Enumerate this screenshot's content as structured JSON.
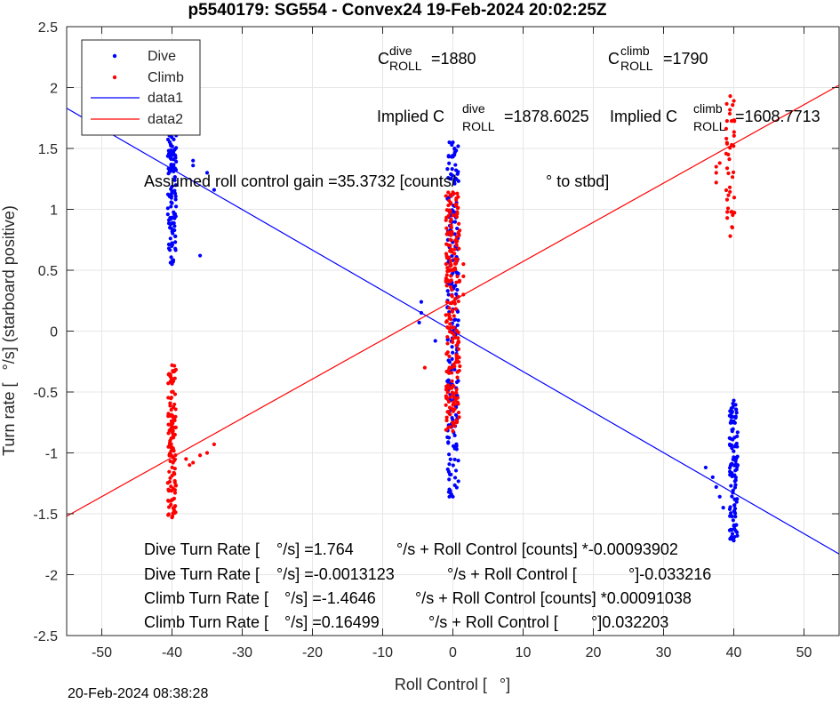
{
  "chart_data": {
    "type": "scatter",
    "title": "p5540179: SG554 - Convex24 19-Feb-2024 20:02:25Z",
    "xlabel_pre": "Roll Control [",
    "xlabel_post": "°]",
    "ylabel_pre": "Turn rate [",
    "ylabel_post": "°/s] (starboard positive)",
    "xlim": [
      -55,
      55
    ],
    "ylim": [
      -2.5,
      2.5
    ],
    "xticks": [
      -50,
      -40,
      -30,
      -20,
      -10,
      0,
      10,
      20,
      30,
      40,
      50
    ],
    "yticks": [
      -2.5,
      -2,
      -1.5,
      -1,
      -0.5,
      0,
      0.5,
      1,
      1.5,
      2,
      2.5
    ],
    "grid": true,
    "legend": {
      "placement": "top-left",
      "entries": [
        "Dive",
        "Climb",
        "data1",
        "data2"
      ]
    },
    "colors": {
      "dive": "#0000ff",
      "climb": "#ff0000"
    },
    "fit_lines": [
      {
        "name": "data1",
        "color": "#0000ff",
        "x": [
          -55,
          55
        ],
        "y": [
          1.83,
          -1.83
        ]
      },
      {
        "name": "data2",
        "color": "#ff0000",
        "x": [
          -55,
          55
        ],
        "y": [
          -1.52,
          2.02
        ]
      }
    ],
    "series": [
      {
        "name": "Dive",
        "color": "#0000ff",
        "clusters": [
          {
            "x": -40,
            "xspread": 0.6,
            "ymin": 0.55,
            "ymax": 1.88,
            "count": 120
          },
          {
            "x": 0,
            "xspread": 0.8,
            "ymin": -1.36,
            "ymax": 1.55,
            "count": 200
          },
          {
            "x": 40,
            "xspread": 0.6,
            "ymin": -1.72,
            "ymax": -0.57,
            "count": 110
          }
        ],
        "outliers": [
          [
            -37,
            1.4
          ],
          [
            -37,
            1.36
          ],
          [
            -34,
            1.16
          ],
          [
            -36,
            0.62
          ],
          [
            -35,
            1.3
          ],
          [
            -4.5,
            0.24
          ],
          [
            -4.5,
            0.15
          ],
          [
            -4.8,
            0.07
          ],
          [
            -2.5,
            -0.08
          ],
          [
            -0.5,
            1.55
          ],
          [
            -0.5,
            -1.36
          ],
          [
            -0.5,
            -1.3
          ],
          [
            36,
            -1.12
          ],
          [
            37,
            -1.2
          ],
          [
            37.5,
            -1.28
          ],
          [
            38,
            -1.36
          ],
          [
            38.5,
            -1.45
          ]
        ]
      },
      {
        "name": "Climb",
        "color": "#ff0000",
        "clusters": [
          {
            "x": -40,
            "xspread": 0.6,
            "ymin": -1.53,
            "ymax": -0.28,
            "count": 130
          },
          {
            "x": 0,
            "xspread": 1.0,
            "ymin": -0.82,
            "ymax": 1.14,
            "count": 220
          },
          {
            "x": 39.5,
            "xspread": 0.6,
            "ymin": 0.78,
            "ymax": 1.93,
            "count": 40
          }
        ],
        "outliers": [
          [
            -38,
            -1.05
          ],
          [
            -37,
            -1.08
          ],
          [
            -36,
            -1.02
          ],
          [
            -35,
            -1.0
          ],
          [
            -34,
            -0.93
          ],
          [
            -37.5,
            -1.1
          ],
          [
            -4,
            -0.3
          ],
          [
            1.5,
            0.55
          ],
          [
            1.5,
            0.45
          ],
          [
            1.5,
            0.3
          ],
          [
            37.5,
            1.35
          ],
          [
            37.5,
            1.3
          ],
          [
            37.5,
            1.22
          ],
          [
            38,
            1.38
          ]
        ]
      }
    ],
    "annotations": {
      "c_dive": {
        "base": "C",
        "sup": "dive",
        "sub": "ROLL",
        "value": "=1880"
      },
      "c_climb": {
        "base": "C",
        "sup": "climb",
        "sub": "ROLL",
        "value": "=1790"
      },
      "implied_dive": {
        "base": "Implied C",
        "sup": "dive",
        "sub": "ROLL",
        "value": "=1878.6025"
      },
      "implied_climb": {
        "base": "Implied C",
        "sup": "climb",
        "sub": "ROLL",
        "value": "=1608.7713"
      },
      "gain_pre": "Assumed roll control gain =35.3732 [counts/",
      "gain_post": "° to stbd]",
      "fits": [
        {
          "pre": "Dive Turn Rate [",
          "post": "°/s] =1.764",
          "tail": "°/s + Roll Control [counts] *-0.00093902"
        },
        {
          "pre": "Dive Turn Rate [",
          "post": "°/s] =-0.0013123",
          "tail": "°/s + Roll Control [",
          "end": "°]-0.033216"
        },
        {
          "pre": "Climb Turn Rate [",
          "post": "°/s] =-1.4646",
          "tail": "°/s + Roll Control [counts] *0.00091038"
        },
        {
          "pre": "Climb Turn Rate [",
          "post": "°/s] =0.16499",
          "tail": "°/s + Roll Control [",
          "end": "°]0.032203"
        }
      ]
    }
  },
  "footer": {
    "timestamp": "20-Feb-2024 08:38:28"
  }
}
